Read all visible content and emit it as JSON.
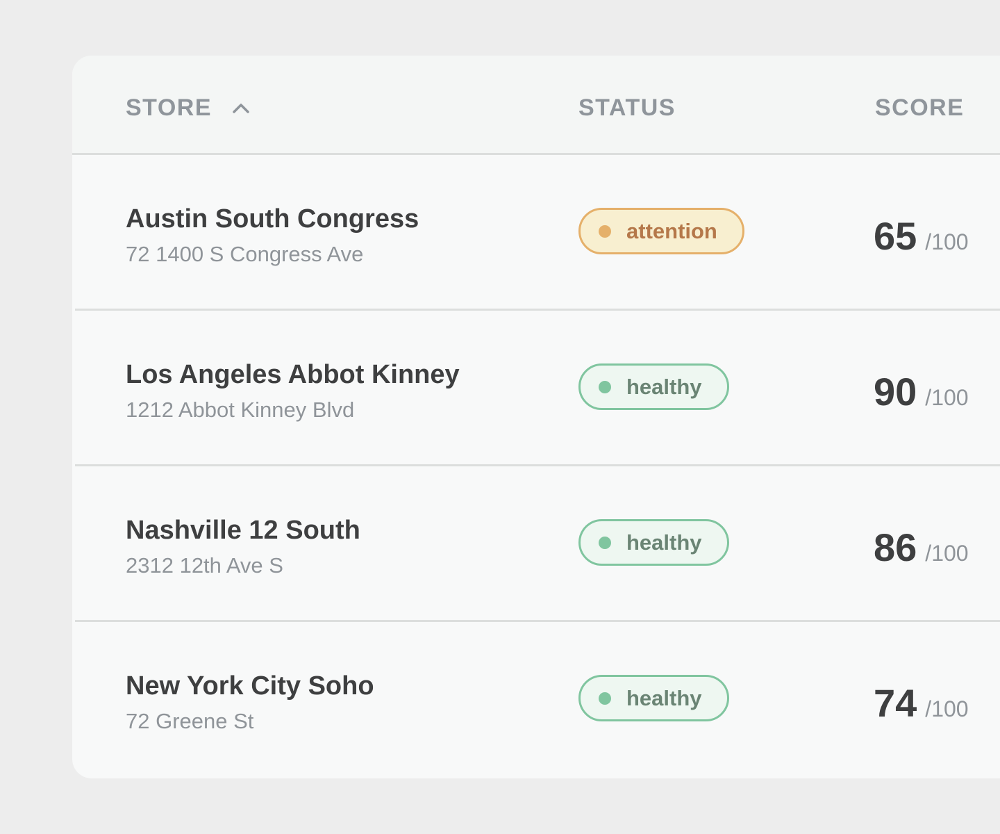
{
  "table": {
    "headers": [
      "STORE",
      "STATUS",
      "SCORE"
    ],
    "rows": [
      {
        "name": "Austin South Congress",
        "address": "72 1400 S Congress Ave",
        "status": {
          "label": "attention",
          "color": "#e5b06a",
          "text_color": "#b5784a",
          "background": "#f8efd0"
        },
        "score": "65",
        "max": "/100"
      },
      {
        "name": "Los Angeles Abbot Kinney",
        "address": "1212 Abbot Kinney Blvd",
        "status": {
          "label": "healthy",
          "color": "#80c59f",
          "text_color": "#6a8474",
          "background": "#eef7f1"
        },
        "score": "90",
        "max": "/100"
      },
      {
        "name": "Nashville 12 South",
        "address": "2312 12th Ave S",
        "status": {
          "label": "healthy",
          "color": "#80c59f",
          "text_color": "#6a8474",
          "background": "#eef7f1"
        },
        "score": "86",
        "max": "/100"
      },
      {
        "name": "New York City Soho",
        "address": "72 Greene St",
        "status": {
          "label": "healthy",
          "color": "#80c59f",
          "text_color": "#6a8474",
          "background": "#eef7f1"
        },
        "score": "74",
        "max": "/100"
      }
    ]
  }
}
